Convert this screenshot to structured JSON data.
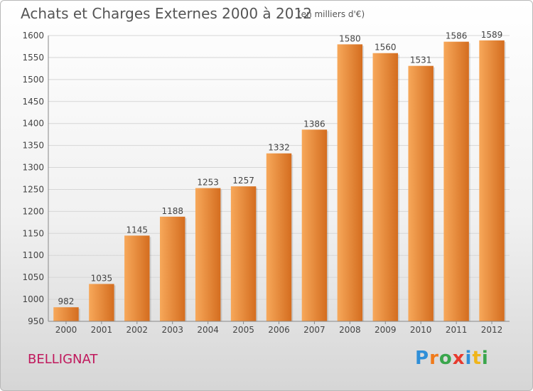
{
  "header": {
    "title": "Achats et Charges Externes 2000 à 2012",
    "subtitle": "(en milliers d'€)"
  },
  "footer": {
    "place": "BELLIGNAT",
    "logo_text": "Proxiti",
    "logo_letters": [
      {
        "ch": "P",
        "color": "#2f8fd8"
      },
      {
        "ch": "r",
        "color": "#f07a1a"
      },
      {
        "ch": "o",
        "color": "#3aa64c"
      },
      {
        "ch": "x",
        "color": "#e73a2e"
      },
      {
        "ch": "i",
        "color": "#2f8fd8"
      },
      {
        "ch": "t",
        "color": "#f0b51a"
      },
      {
        "ch": "i",
        "color": "#3aa64c"
      }
    ]
  },
  "chart_data": {
    "type": "bar",
    "title": "Achats et Charges Externes 2000 à 2012",
    "subtitle": "(en milliers d'€)",
    "categories": [
      "2000",
      "2001",
      "2002",
      "2003",
      "2004",
      "2005",
      "2006",
      "2007",
      "2008",
      "2009",
      "2010",
      "2011",
      "2012"
    ],
    "values": [
      982,
      1035,
      1145,
      1188,
      1253,
      1257,
      1332,
      1386,
      1580,
      1560,
      1531,
      1586,
      1589
    ],
    "ylim": [
      950,
      1600
    ],
    "yticks": [
      950,
      1000,
      1050,
      1100,
      1150,
      1200,
      1250,
      1300,
      1350,
      1400,
      1450,
      1500,
      1550,
      1600
    ],
    "grid": true,
    "data_labels": true,
    "colors": {
      "bar_light": "#f7a85a",
      "bar_dark": "#d46d1f",
      "grid": "#d6d6d6",
      "axis": "#888888",
      "text": "#444444"
    }
  }
}
